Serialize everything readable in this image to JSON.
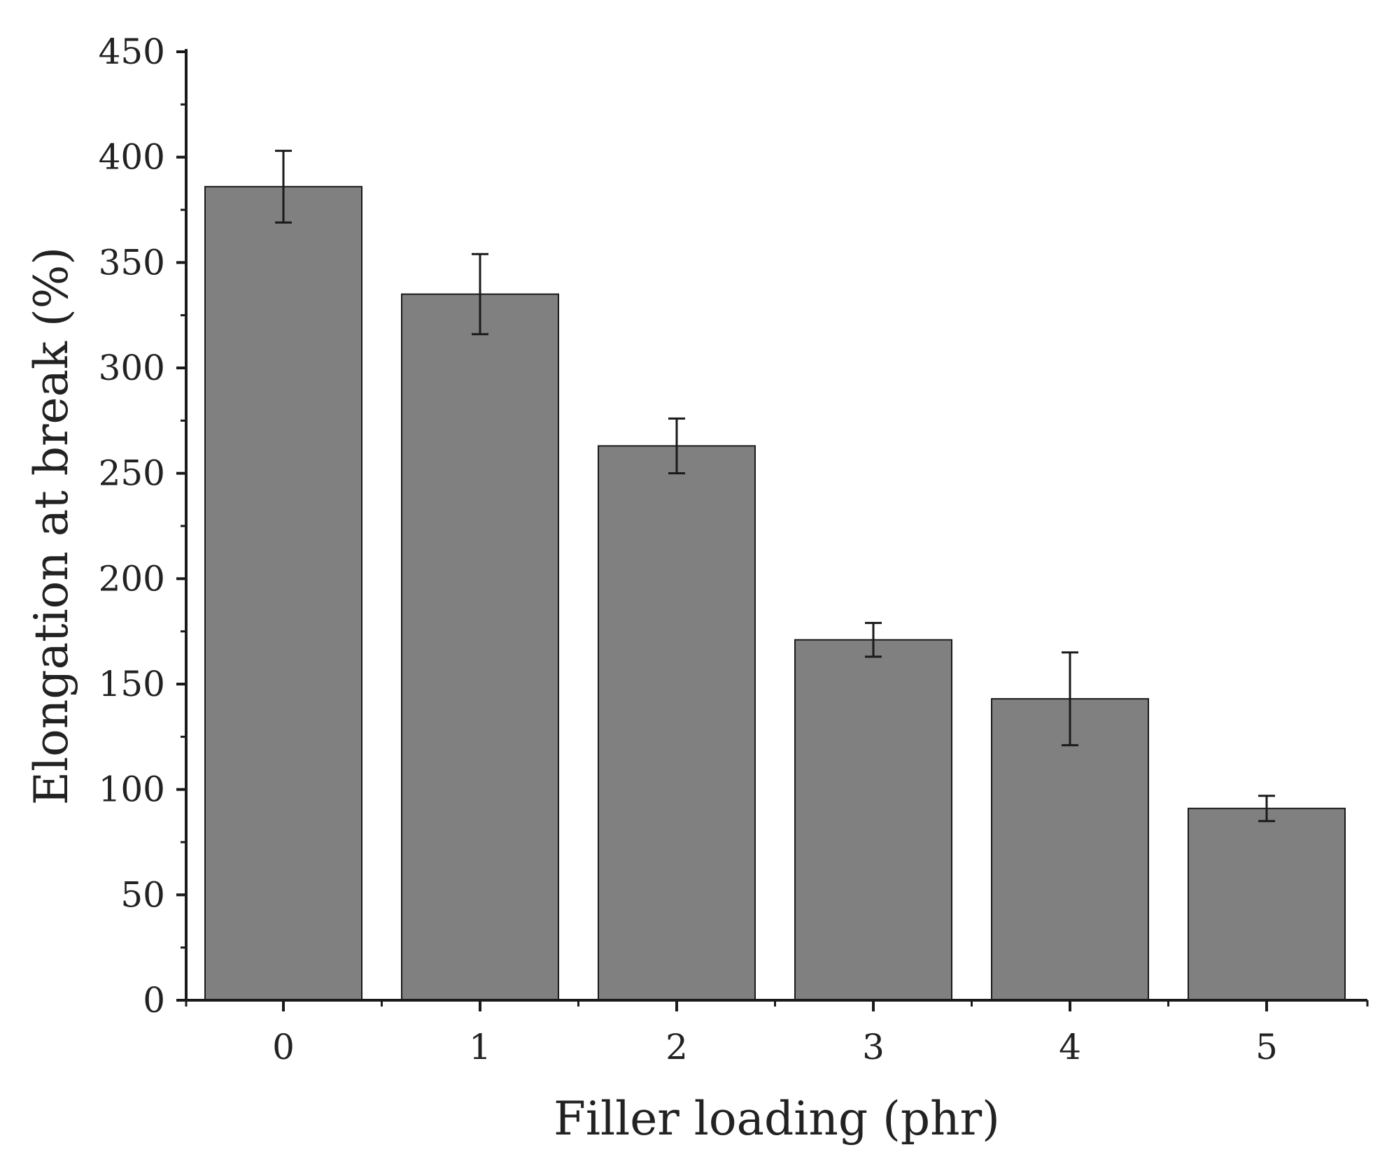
{
  "chart_data": {
    "type": "bar",
    "title": "",
    "xlabel": "Filler loading (phr)",
    "ylabel": "Elongation at break (%)",
    "categories": [
      "0",
      "1",
      "2",
      "3",
      "4",
      "5"
    ],
    "values": [
      386,
      335,
      263,
      171,
      143,
      91
    ],
    "errors": [
      17,
      19,
      13,
      8,
      22,
      6
    ],
    "ylim": [
      0,
      450
    ],
    "yticks": [
      0,
      50,
      100,
      150,
      200,
      250,
      300,
      350,
      400,
      450
    ],
    "grid": false,
    "legend": "none",
    "colors": {
      "bar_fill": "#808080",
      "bar_stroke": "#1a1a1a",
      "axis": "#1a1a1a",
      "error_bar": "#1a1a1a"
    }
  }
}
